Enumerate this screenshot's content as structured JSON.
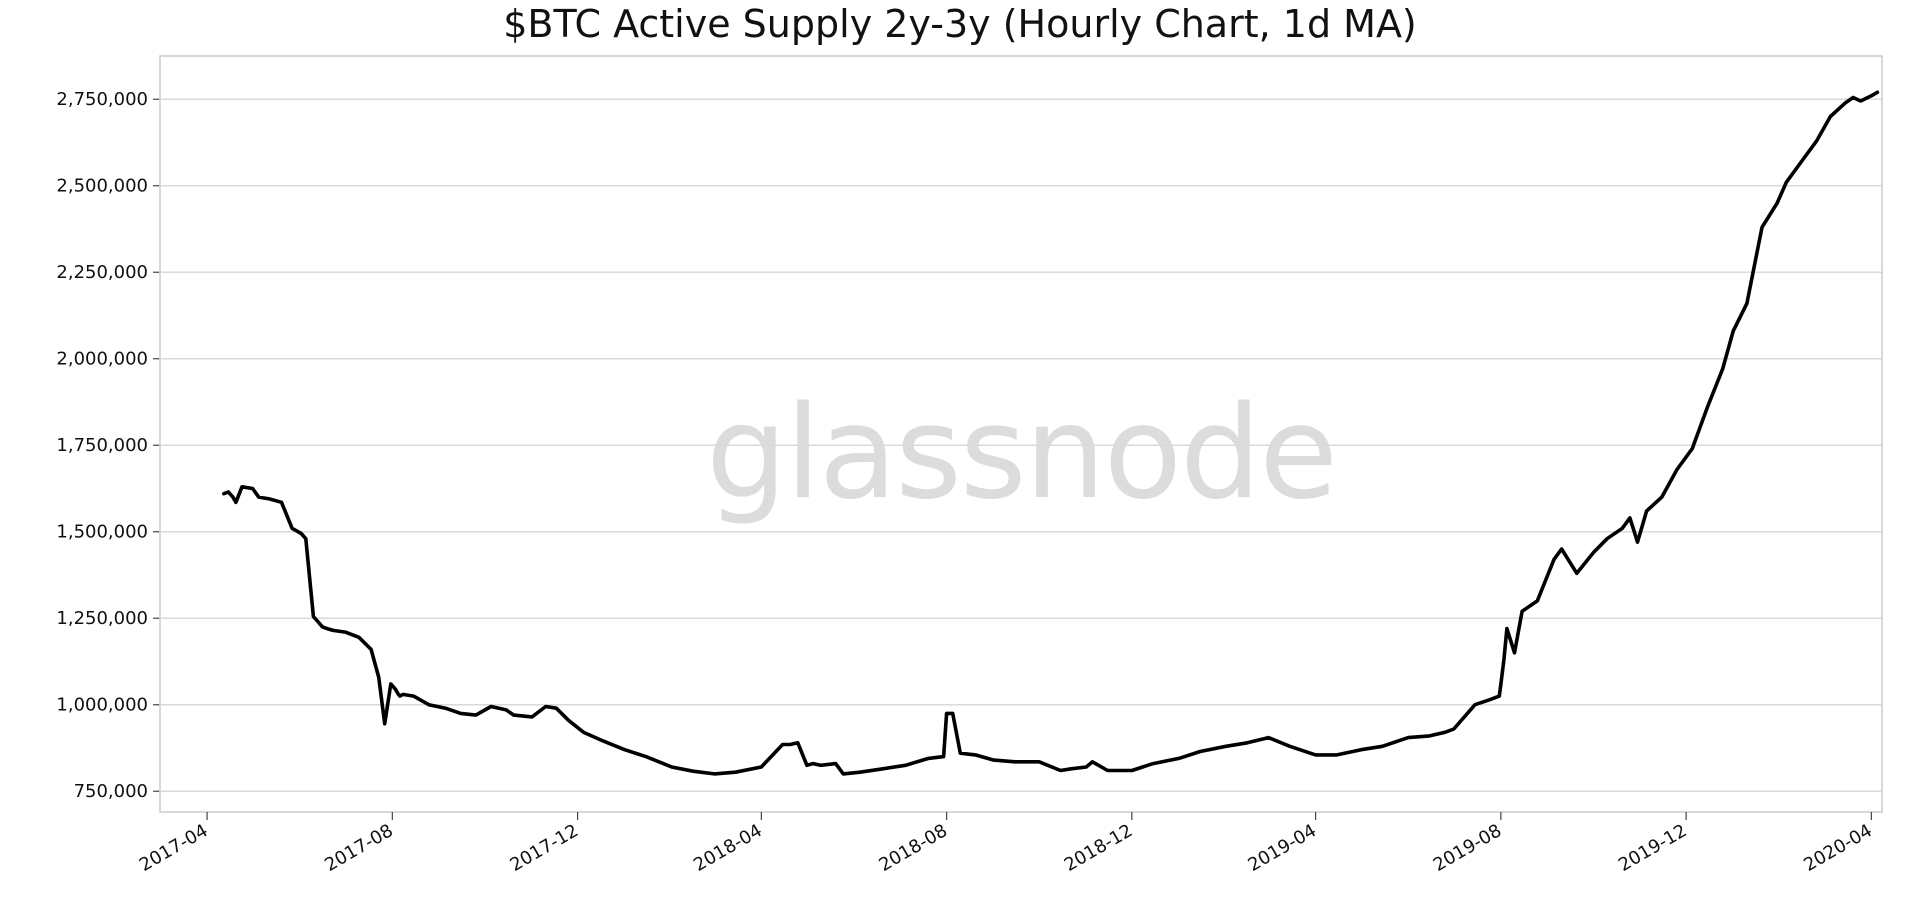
{
  "chart_data": {
    "type": "line",
    "title": "$BTC Active Supply 2y-3y (Hourly Chart, 1d MA)",
    "watermark": "glassnode",
    "xlabel": "",
    "ylabel": "",
    "grid": "horizontal",
    "legend": "none",
    "colors": {
      "line": "#000000",
      "grid": "#d9d9d9",
      "axes": "#cfcfcf",
      "watermark": "#dcdcdc"
    },
    "xlim": [
      "2017-03-01",
      "2020-04-08"
    ],
    "ylim": [
      690000,
      2875000
    ],
    "x_ticks": [
      "2017-04",
      "2017-08",
      "2017-12",
      "2018-04",
      "2018-08",
      "2018-12",
      "2019-04",
      "2019-08",
      "2019-12",
      "2020-04"
    ],
    "y_ticks": [
      750000,
      1000000,
      1250000,
      1500000,
      1750000,
      2000000,
      2250000,
      2500000,
      2750000
    ],
    "y_tick_labels": [
      "750,000",
      "1,000,000",
      "1,250,000",
      "1,500,000",
      "1,750,000",
      "2,000,000",
      "2,250,000",
      "2,500,000",
      "2,750,000"
    ],
    "series": [
      {
        "x": [
          "2017-04-12",
          "2017-04-15",
          "2017-04-18",
          "2017-04-20",
          "2017-04-24",
          "2017-05-01",
          "2017-05-05",
          "2017-05-12",
          "2017-05-20",
          "2017-05-27",
          "2017-06-02",
          "2017-06-05",
          "2017-06-10",
          "2017-06-16",
          "2017-06-19",
          "2017-06-23",
          "2017-07-01",
          "2017-07-10",
          "2017-07-18",
          "2017-07-23",
          "2017-07-27",
          "2017-07-31",
          "2017-08-03",
          "2017-08-05",
          "2017-08-06",
          "2017-08-08",
          "2017-08-15",
          "2017-08-25",
          "2017-09-05",
          "2017-09-15",
          "2017-09-25",
          "2017-10-05",
          "2017-10-15",
          "2017-10-20",
          "2017-11-01",
          "2017-11-10",
          "2017-11-17",
          "2017-11-25",
          "2017-12-05",
          "2017-12-18",
          "2018-01-01",
          "2018-01-15",
          "2018-02-01",
          "2018-02-15",
          "2018-03-01",
          "2018-03-15",
          "2018-04-01",
          "2018-04-15",
          "2018-04-20",
          "2018-04-25",
          "2018-05-01",
          "2018-05-05",
          "2018-05-10",
          "2018-05-20",
          "2018-05-25",
          "2018-06-05",
          "2018-06-20",
          "2018-07-05",
          "2018-07-20",
          "2018-07-30",
          "2018-08-01",
          "2018-08-05",
          "2018-08-10",
          "2018-08-20",
          "2018-09-01",
          "2018-09-15",
          "2018-10-01",
          "2018-10-15",
          "2018-10-22",
          "2018-11-01",
          "2018-11-05",
          "2018-11-15",
          "2018-12-01",
          "2018-12-15",
          "2019-01-01",
          "2019-01-15",
          "2019-02-01",
          "2019-02-15",
          "2019-03-01",
          "2019-03-15",
          "2019-04-01",
          "2019-04-15",
          "2019-05-01",
          "2019-05-15",
          "2019-06-01",
          "2019-06-15",
          "2019-06-25",
          "2019-07-01",
          "2019-07-15",
          "2019-07-25",
          "2019-07-31",
          "2019-08-01",
          "2019-08-03",
          "2019-08-05",
          "2019-08-10",
          "2019-08-15",
          "2019-08-25",
          "2019-09-05",
          "2019-09-10",
          "2019-09-20",
          "2019-10-01",
          "2019-10-10",
          "2019-10-20",
          "2019-10-25",
          "2019-10-30",
          "2019-11-05",
          "2019-11-15",
          "2019-11-25",
          "2019-12-05",
          "2019-12-15",
          "2019-12-25",
          "2020-01-01",
          "2020-01-10",
          "2020-01-20",
          "2020-01-30",
          "2020-02-05",
          "2020-02-15",
          "2020-02-25",
          "2020-03-05",
          "2020-03-15",
          "2020-03-20",
          "2020-03-25",
          "2020-04-01",
          "2020-04-05"
        ],
        "values": [
          1610000,
          1615000,
          1600000,
          1585000,
          1630000,
          1625000,
          1600000,
          1595000,
          1585000,
          1510000,
          1495000,
          1480000,
          1255000,
          1225000,
          1220000,
          1215000,
          1210000,
          1195000,
          1160000,
          1080000,
          945000,
          1060000,
          1045000,
          1030000,
          1025000,
          1030000,
          1025000,
          1000000,
          990000,
          975000,
          970000,
          995000,
          985000,
          970000,
          965000,
          995000,
          990000,
          955000,
          920000,
          895000,
          870000,
          850000,
          820000,
          808000,
          800000,
          805000,
          820000,
          885000,
          885000,
          890000,
          825000,
          830000,
          825000,
          830000,
          800000,
          805000,
          815000,
          825000,
          845000,
          850000,
          975000,
          975000,
          860000,
          855000,
          840000,
          835000,
          835000,
          810000,
          815000,
          820000,
          835000,
          810000,
          810000,
          830000,
          845000,
          865000,
          880000,
          890000,
          905000,
          880000,
          855000,
          855000,
          870000,
          880000,
          905000,
          910000,
          920000,
          930000,
          1000000,
          1015000,
          1025000,
          1060000,
          1130000,
          1220000,
          1150000,
          1270000,
          1300000,
          1420000,
          1450000,
          1380000,
          1440000,
          1480000,
          1510000,
          1540000,
          1470000,
          1560000,
          1600000,
          1680000,
          1740000,
          1860000,
          1970000,
          2080000,
          2160000,
          2380000,
          2450000,
          2510000,
          2570000,
          2630000,
          2700000,
          2740000,
          2755000,
          2745000,
          2760000,
          2770000
        ]
      }
    ]
  }
}
